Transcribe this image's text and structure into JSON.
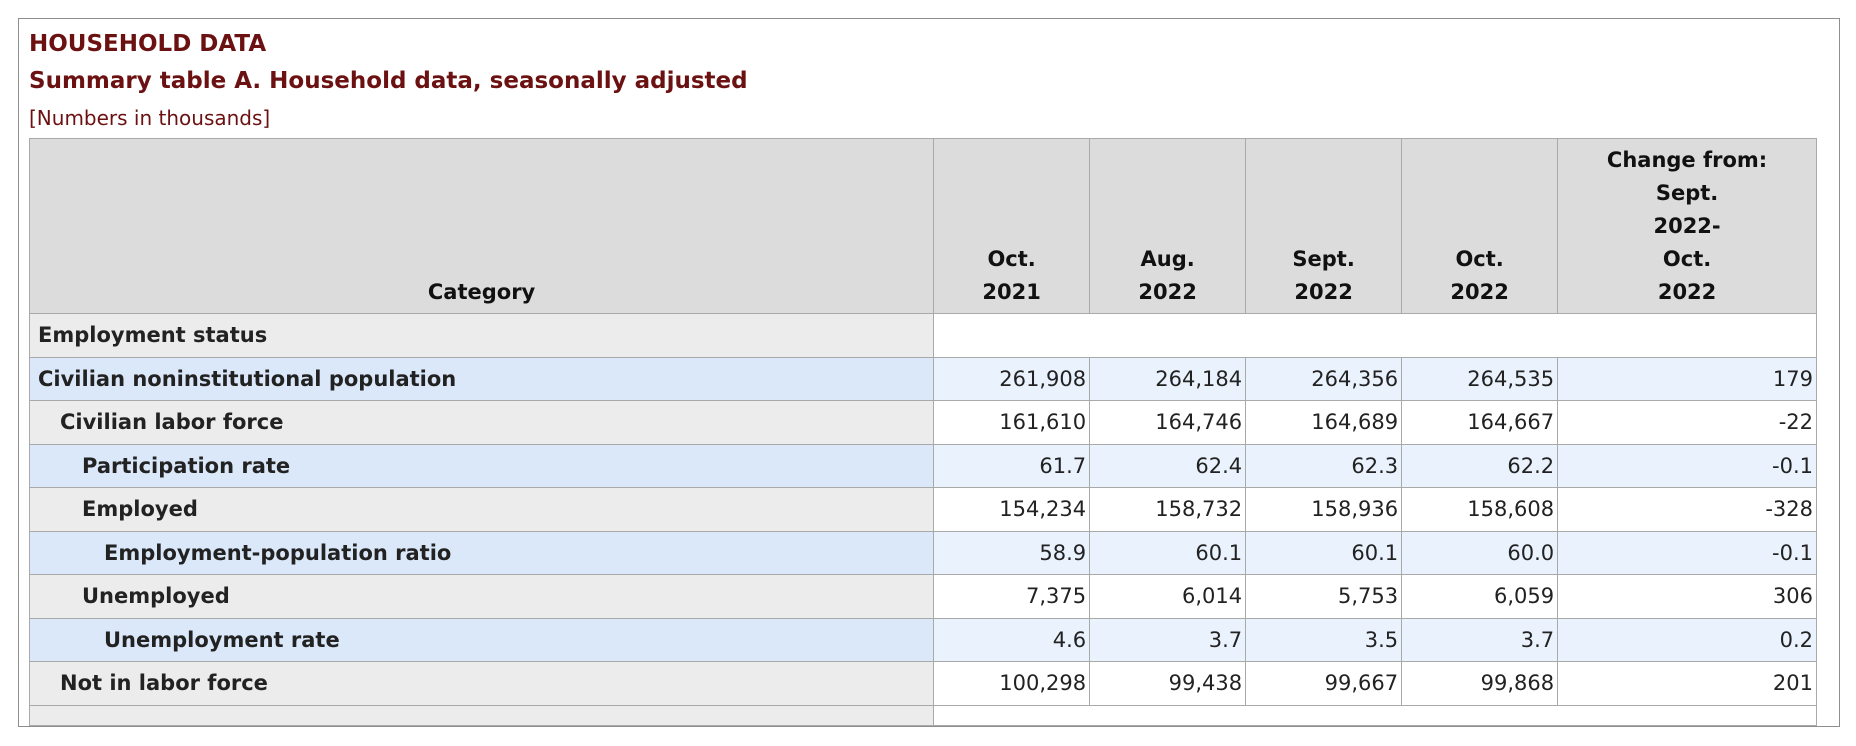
{
  "heading": "HOUSEHOLD DATA",
  "subheading": "Summary table A. Household data, seasonally adjusted",
  "note": "[Numbers in thousands]",
  "columns": {
    "category": "Category",
    "c1": [
      "Oct.",
      "2021"
    ],
    "c2": [
      "Aug.",
      "2022"
    ],
    "c3": [
      "Sept.",
      "2022"
    ],
    "c4": [
      "Oct.",
      "2022"
    ],
    "c5": [
      "Change from:",
      "Sept.",
      "2022-",
      "Oct.",
      "2022"
    ]
  },
  "section": "Employment status",
  "rows": [
    {
      "label": "Civilian noninstitutional population",
      "values": [
        "261,908",
        "264,184",
        "264,356",
        "264,535",
        "179"
      ]
    },
    {
      "label": "Civilian labor force",
      "values": [
        "161,610",
        "164,746",
        "164,689",
        "164,667",
        "-22"
      ]
    },
    {
      "label": "Participation rate",
      "values": [
        "61.7",
        "62.4",
        "62.3",
        "62.2",
        "-0.1"
      ]
    },
    {
      "label": "Employed",
      "values": [
        "154,234",
        "158,732",
        "158,936",
        "158,608",
        "-328"
      ]
    },
    {
      "label": "Employment-population ratio",
      "values": [
        "58.9",
        "60.1",
        "60.1",
        "60.0",
        "-0.1"
      ]
    },
    {
      "label": "Unemployed",
      "values": [
        "7,375",
        "6,014",
        "5,753",
        "6,059",
        "306"
      ]
    },
    {
      "label": "Unemployment rate",
      "values": [
        "4.6",
        "3.7",
        "3.5",
        "3.7",
        "0.2"
      ]
    },
    {
      "label": "Not in labor force",
      "values": [
        "100,298",
        "99,438",
        "99,667",
        "99,868",
        "201"
      ]
    }
  ]
}
